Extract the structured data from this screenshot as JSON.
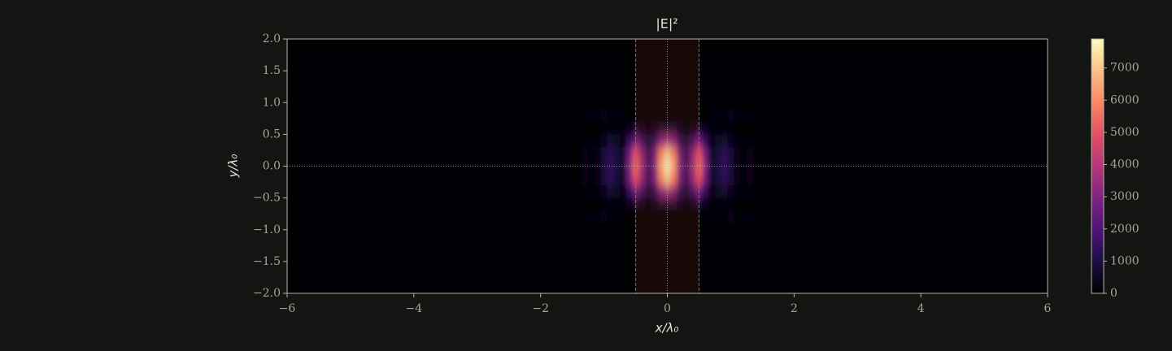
{
  "chart_data": {
    "type": "heatmap",
    "title": "|E|²",
    "x_label": "x/λ₀",
    "y_label": "y/λ₀",
    "xlim": [
      -6,
      6
    ],
    "ylim": [
      -2,
      2
    ],
    "xticks": [
      {
        "value": -6,
        "label": "−6"
      },
      {
        "value": -4,
        "label": "−4"
      },
      {
        "value": -2,
        "label": "−2"
      },
      0,
      2,
      4,
      6
    ],
    "yticks": [
      {
        "value": 2,
        "label": "2.0"
      },
      {
        "value": 1.5,
        "label": "1.5"
      },
      {
        "value": 1,
        "label": "1.0"
      },
      {
        "value": 0.5,
        "label": "0.5"
      },
      {
        "value": 0,
        "label": "0.0"
      },
      {
        "value": -0.5,
        "label": "−0.5"
      },
      {
        "value": -1,
        "label": "−1.0"
      },
      {
        "value": -1.5,
        "label": "−1.5"
      },
      {
        "value": -2,
        "label": "−2.0"
      }
    ],
    "colormap": "magma",
    "clim": [
      0,
      7900
    ],
    "cticks": [
      0,
      1000,
      2000,
      3000,
      4000,
      5000,
      6000,
      7000
    ],
    "shaded_region": [
      -0.5,
      0.5
    ],
    "vlines": [
      0
    ],
    "hlines": [
      0
    ],
    "x": [
      -1.3,
      -1.2,
      -1.1,
      -1.0,
      -0.9,
      -0.8,
      -0.7,
      -0.6,
      -0.5,
      -0.4,
      -0.3,
      -0.2,
      -0.1,
      0,
      0.1,
      0.2,
      0.3,
      0.4,
      0.5,
      0.6,
      0.7,
      0.8,
      0.9,
      1.0,
      1.1,
      1.2,
      1.3
    ],
    "y": [
      0.8,
      0.6,
      0.4,
      0.2,
      0,
      -0.2,
      -0.4,
      -0.6,
      -0.8
    ],
    "z": [
      [
        200,
        150,
        200,
        250,
        200,
        100,
        50,
        30,
        20,
        20,
        20,
        20,
        20,
        20,
        20,
        20,
        20,
        20,
        20,
        30,
        50,
        100,
        200,
        250,
        200,
        150,
        200
      ],
      [
        24,
        16,
        24,
        72,
        120,
        80,
        48,
        240,
        440,
        280,
        120,
        240,
        520,
        630,
        520,
        240,
        120,
        280,
        440,
        240,
        48,
        80,
        120,
        72,
        24,
        16,
        24
      ],
      [
        140,
        90,
        140,
        400,
        680,
        450,
        270,
        1350,
        2500,
        1600,
        680,
        1350,
        2900,
        3600,
        2900,
        1350,
        680,
        1600,
        2500,
        1350,
        270,
        450,
        680,
        400,
        140,
        90,
        140
      ],
      [
        270,
        180,
        270,
        810,
        1350,
        900,
        540,
        2700,
        4950,
        3150,
        1350,
        2700,
        5850,
        7100,
        5850,
        2700,
        1350,
        3150,
        4950,
        2700,
        540,
        900,
        1350,
        810,
        270,
        180,
        270
      ],
      [
        300,
        200,
        300,
        900,
        1500,
        1000,
        600,
        3000,
        5500,
        3500,
        1500,
        3000,
        6500,
        7900,
        6500,
        3000,
        1500,
        3500,
        5500,
        3000,
        600,
        1000,
        1500,
        900,
        300,
        200,
        300
      ],
      [
        270,
        180,
        270,
        810,
        1350,
        900,
        540,
        2700,
        4950,
        3150,
        1350,
        2700,
        5850,
        7100,
        5850,
        2700,
        1350,
        3150,
        4950,
        2700,
        540,
        900,
        1350,
        810,
        270,
        180,
        270
      ],
      [
        140,
        90,
        140,
        400,
        680,
        450,
        270,
        1350,
        2500,
        1600,
        680,
        1350,
        2900,
        3600,
        2900,
        1350,
        680,
        1600,
        2500,
        1350,
        270,
        450,
        680,
        400,
        140,
        90,
        140
      ],
      [
        24,
        16,
        24,
        72,
        120,
        80,
        48,
        240,
        440,
        280,
        120,
        240,
        520,
        630,
        520,
        240,
        120,
        280,
        440,
        240,
        48,
        80,
        120,
        72,
        24,
        16,
        24
      ],
      [
        200,
        150,
        200,
        250,
        200,
        100,
        50,
        30,
        20,
        20,
        20,
        20,
        20,
        20,
        20,
        20,
        20,
        20,
        20,
        30,
        50,
        100,
        200,
        250,
        200,
        150,
        200
      ]
    ]
  }
}
